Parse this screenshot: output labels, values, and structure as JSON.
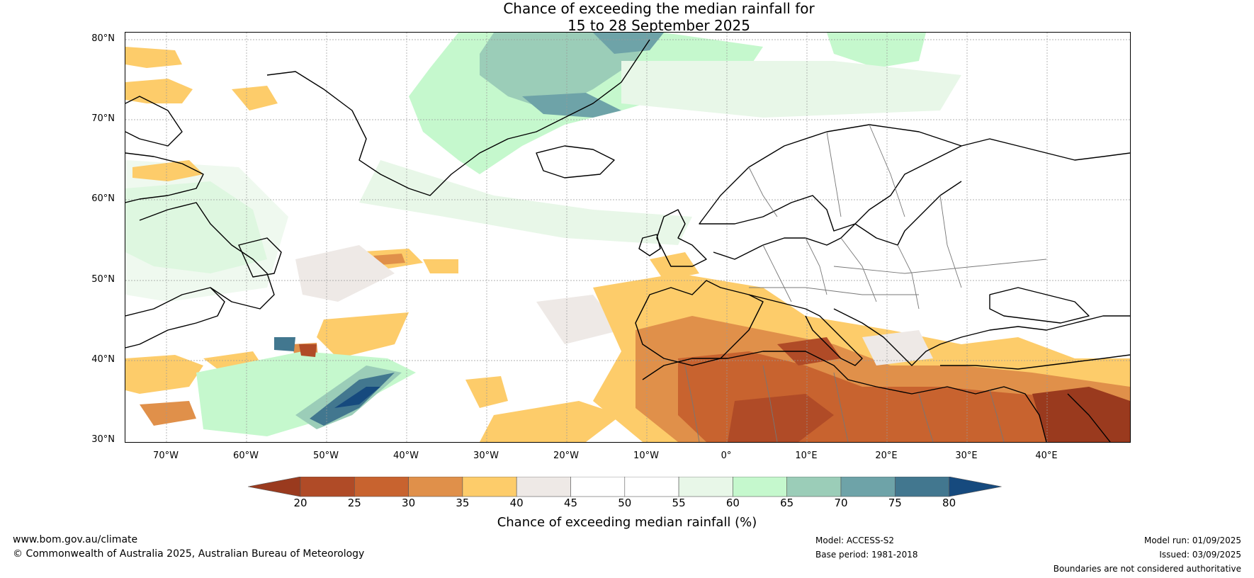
{
  "title": {
    "line1": "Chance of exceeding the median rainfall for",
    "line2": "15 to 28 September 2025"
  },
  "map": {
    "lat_labels": [
      "80°N",
      "70°N",
      "60°N",
      "50°N",
      "40°N",
      "30°N"
    ],
    "lon_labels": [
      "70°W",
      "60°W",
      "50°W",
      "40°W",
      "30°W",
      "20°W",
      "10°W",
      "0°",
      "10°E",
      "20°E",
      "30°E",
      "40°E"
    ]
  },
  "legend": {
    "title": "Chance of exceeding median rainfall (%)",
    "ticks": [
      "20",
      "25",
      "30",
      "35",
      "40",
      "45",
      "50",
      "55",
      "60",
      "65",
      "70",
      "75",
      "80"
    ],
    "colors": [
      "#9a3a1e",
      "#b04b27",
      "#c8632f",
      "#e0904a",
      "#fdcc6a",
      "#eee9e6",
      "#ffffff",
      "#ffffff",
      "#e8f7e8",
      "#c5f8cd",
      "#9bcdb8",
      "#6ea3a8",
      "#42778f",
      "#164a7e"
    ]
  },
  "footer": {
    "website": "www.bom.gov.au/climate",
    "copyright": "© Commonwealth of Australia 2025, Australian Bureau of Meteorology",
    "model": "Model: ACCESS-S2",
    "base_period": "Base period: 1981-2018",
    "model_run": "Model run: 01/09/2025",
    "issued": "Issued: 03/09/2025",
    "disclaimer": "Boundaries are not considered authoritative"
  }
}
